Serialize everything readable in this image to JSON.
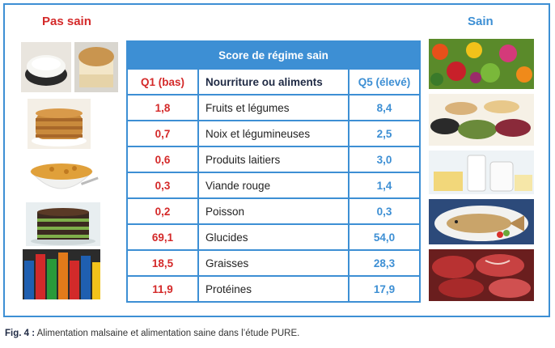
{
  "left_heading": "Pas sain",
  "right_heading": "Sain",
  "table": {
    "title": "Score de régime sain",
    "headers": {
      "q1": "Q1 (bas)",
      "food": "Nourriture ou aliments",
      "q5": "Q5 (élevé)"
    },
    "rows": [
      {
        "q1": "1,8",
        "food": "Fruits et légumes",
        "q5": "8,4"
      },
      {
        "q1": "0,7",
        "food": "Noix et légumineuses",
        "q5": "2,5"
      },
      {
        "q1": "0,6",
        "food": "Produits laitiers",
        "q5": "3,0"
      },
      {
        "q1": "0,3",
        "food": "Viande rouge",
        "q5": "1,4"
      },
      {
        "q1": "0,2",
        "food": "Poisson",
        "q5": "0,3"
      },
      {
        "q1": "69,1",
        "food": "Glucides",
        "q5": "54,0"
      },
      {
        "q1": "18,5",
        "food": "Graisses",
        "q5": "28,3"
      },
      {
        "q1": "11,9",
        "food": "Protéines",
        "q5": "17,9"
      }
    ]
  },
  "caption": {
    "label": "Fig. 4 :",
    "text": " Alimentation malsaine et alimentation saine dans l’étude PURE."
  },
  "colors": {
    "accent_blue": "#3d8fd4",
    "accent_red": "#d42a2a"
  }
}
